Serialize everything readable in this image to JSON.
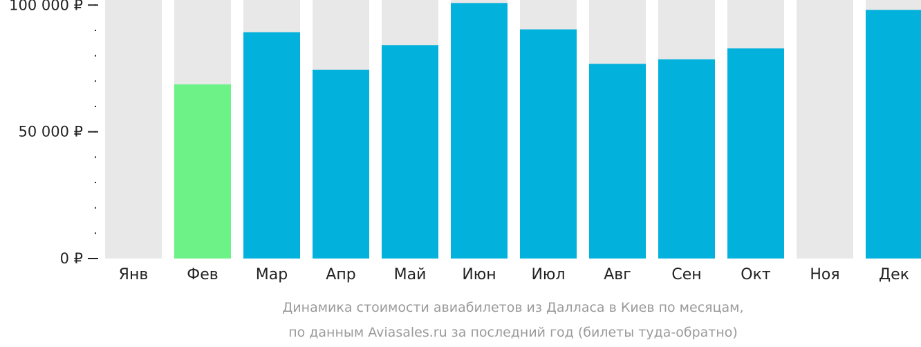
{
  "chart_data": {
    "type": "bar",
    "categories": [
      "Янв",
      "Фев",
      "Мар",
      "Апр",
      "Май",
      "Июн",
      "Июл",
      "Авг",
      "Сен",
      "Окт",
      "Ноя",
      "Дек"
    ],
    "values": [
      null,
      68700,
      89300,
      74500,
      84200,
      100800,
      90400,
      76800,
      78600,
      82900,
      null,
      98100
    ],
    "highlight_index": 1,
    "ylim": [
      0,
      102000
    ],
    "yticks": [
      {
        "value": 0,
        "label": "0 ₽"
      },
      {
        "value": 50000,
        "label": "50 000 ₽"
      },
      {
        "value": 100000,
        "label": "100 000 ₽"
      }
    ],
    "minor_tick_step": 10000,
    "caption": [
      "Динамика стоимости авиабилетов из Далласа в Киев по месяцам,",
      "по данным Aviasales.ru за последний год (билеты туда-обратно)"
    ],
    "colors": {
      "bar": "#02b1dc",
      "highlight": "#6cf286",
      "background_bar": "#e8e8e8",
      "axis": "#222222",
      "caption": "#9a9a9a"
    }
  }
}
